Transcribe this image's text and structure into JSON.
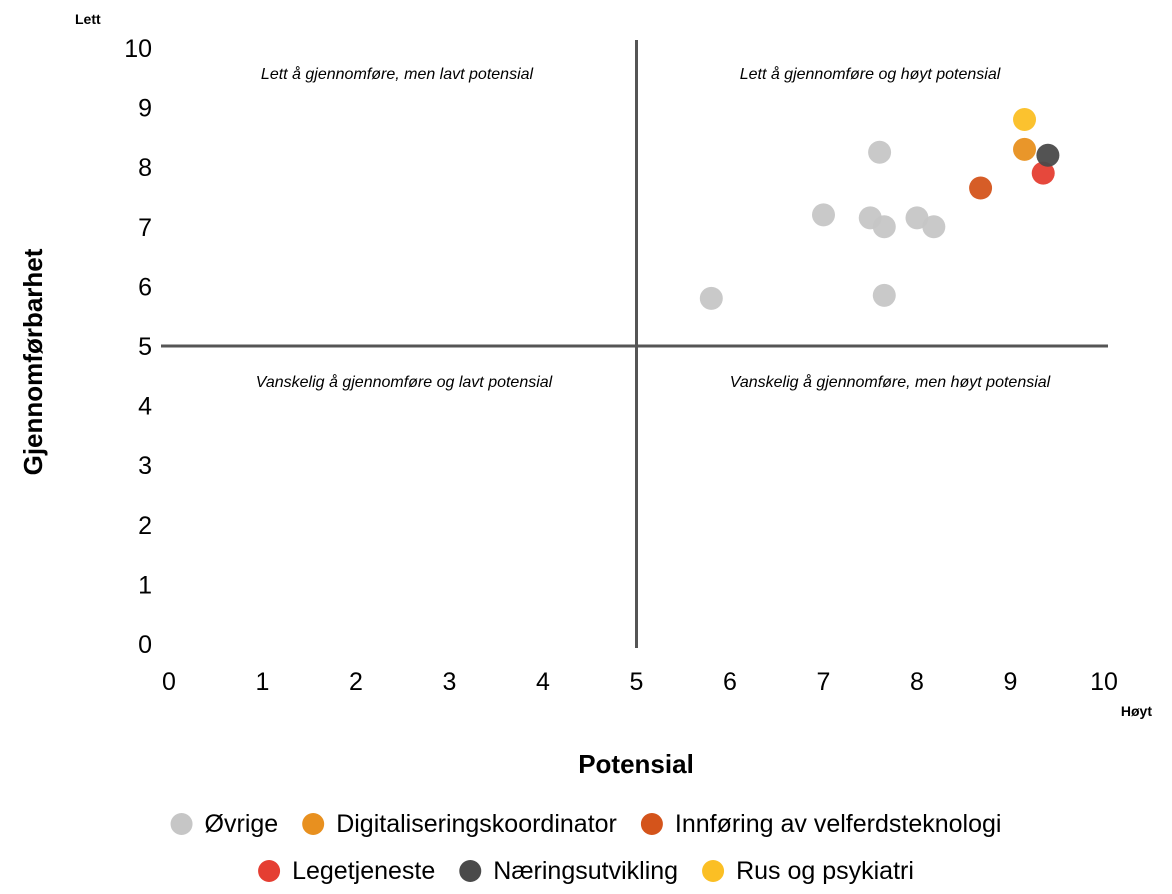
{
  "chart_data": {
    "type": "scatter",
    "title": "",
    "xlabel": "Potensial",
    "ylabel": "Gjennomførbarhet",
    "x_end_label": "Høyt",
    "y_end_label": "Lett",
    "xlim": [
      0,
      10
    ],
    "ylim": [
      0,
      10
    ],
    "x_ticks": [
      "0",
      "1",
      "2",
      "3",
      "4",
      "5",
      "6",
      "7",
      "8",
      "9",
      "10"
    ],
    "y_ticks": [
      "0",
      "1",
      "2",
      "3",
      "4",
      "5",
      "6",
      "7",
      "8",
      "9",
      "10"
    ],
    "divider_x": 5,
    "divider_y": 5,
    "grid": false,
    "legend_position": "bottom",
    "quadrant_labels": {
      "top_left": "Lett å gjennomføre, men lavt potensial",
      "top_right": "Lett å gjennomføre og høyt potensial",
      "bottom_left": "Vanskelig å gjennomføre og lavt potensial",
      "bottom_right": "Vanskelig å gjennomføre, men høyt potensial"
    },
    "series": [
      {
        "name": "Øvrige",
        "color": "#c6c6c6",
        "points": [
          {
            "x": 5.8,
            "y": 5.8
          },
          {
            "x": 7.0,
            "y": 7.2
          },
          {
            "x": 7.5,
            "y": 7.15
          },
          {
            "x": 7.6,
            "y": 8.25
          },
          {
            "x": 7.65,
            "y": 7.0
          },
          {
            "x": 7.65,
            "y": 5.85
          },
          {
            "x": 8.0,
            "y": 7.15
          },
          {
            "x": 8.18,
            "y": 7.0
          }
        ]
      },
      {
        "name": "Digitaliseringskoordinator",
        "color": "#e8901f",
        "points": [
          {
            "x": 9.15,
            "y": 8.3
          }
        ]
      },
      {
        "name": "Innføring av velferdsteknologi",
        "color": "#d4541b",
        "points": [
          {
            "x": 8.68,
            "y": 7.65
          }
        ]
      },
      {
        "name": "Legetjeneste",
        "color": "#e53e32",
        "points": [
          {
            "x": 9.35,
            "y": 7.9
          }
        ]
      },
      {
        "name": "Næringsutvikling",
        "color": "#4a4a4a",
        "points": [
          {
            "x": 9.4,
            "y": 8.2
          }
        ]
      },
      {
        "name": "Rus og psykiatri",
        "color": "#fbbf24",
        "points": [
          {
            "x": 9.15,
            "y": 8.8
          }
        ]
      }
    ]
  }
}
